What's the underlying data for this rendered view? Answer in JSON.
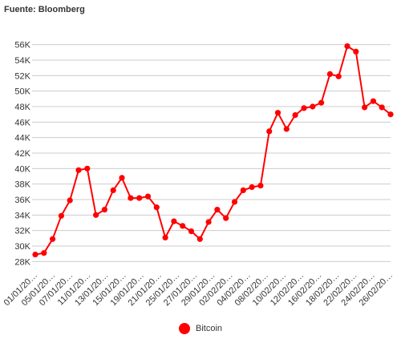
{
  "source": "Fuente: Bloomberg",
  "colors": {
    "series": "#ff0000",
    "grid": "#cccccc",
    "text": "#333333"
  },
  "chart_data": {
    "type": "line",
    "title": "",
    "xlabel": "",
    "ylabel": "",
    "ylim": [
      27000,
      57000
    ],
    "grid": "horizontal",
    "legend_position": "bottom",
    "y_ticks": [
      28000,
      30000,
      32000,
      34000,
      36000,
      38000,
      40000,
      42000,
      44000,
      46000,
      48000,
      50000,
      52000,
      54000,
      56000
    ],
    "y_tick_labels": [
      "28K",
      "30K",
      "32K",
      "34K",
      "36K",
      "38K",
      "40K",
      "42K",
      "44K",
      "46K",
      "48K",
      "50K",
      "52K",
      "54K",
      "56K"
    ],
    "x_tick_labels": [
      "01/01/20…",
      "05/01/20…",
      "07/01/20…",
      "11/01/20…",
      "13/01/20…",
      "15/01/20…",
      "19/01/20…",
      "21/01/20…",
      "25/01/20…",
      "27/01/20…",
      "29/01/20…",
      "02/02/20…",
      "04/02/20…",
      "08/02/20…",
      "10/02/20…",
      "12/02/20…",
      "16/02/20…",
      "18/02/20…",
      "22/02/20…",
      "24/02/20…",
      "26/02/20…"
    ],
    "series": [
      {
        "name": "Bitcoin",
        "values": [
          28900,
          29100,
          30900,
          33900,
          35900,
          39800,
          40000,
          34000,
          34700,
          37200,
          38800,
          36200,
          36200,
          36400,
          35000,
          31100,
          33200,
          32600,
          31900,
          30900,
          33100,
          34700,
          33600,
          35700,
          37200,
          37600,
          37800,
          44800,
          47200,
          45100,
          46900,
          47800,
          48000,
          48500,
          52200,
          51900,
          55800,
          55100,
          47900,
          48700,
          47900,
          47000
        ]
      }
    ]
  }
}
